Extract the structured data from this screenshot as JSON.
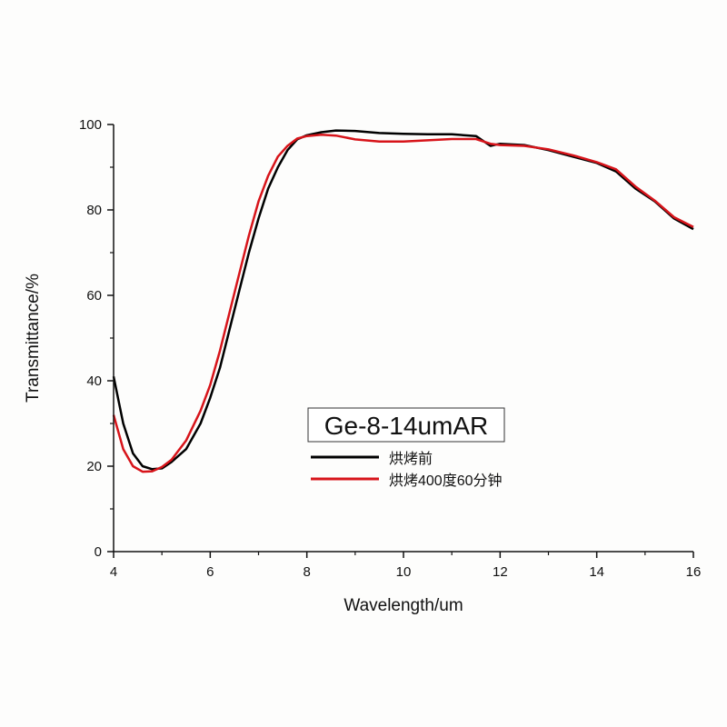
{
  "chart_data": {
    "type": "line",
    "title": "",
    "xlabel": "Wavelength/um",
    "ylabel": "Transmittance/%",
    "xlim": [
      4,
      16
    ],
    "ylim": [
      0,
      100
    ],
    "xticks": [
      4,
      6,
      8,
      10,
      12,
      14,
      16
    ],
    "yticks": [
      0,
      20,
      40,
      60,
      80,
      100
    ],
    "grid": false,
    "legend": {
      "title": "Ge-8-14umAR",
      "placement": "center"
    },
    "series": [
      {
        "name": "烘烤前",
        "color": "#000000",
        "x": [
          4,
          4.2,
          4.4,
          4.6,
          4.8,
          5.0,
          5.2,
          5.5,
          5.8,
          6.0,
          6.2,
          6.4,
          6.6,
          6.8,
          7.0,
          7.2,
          7.4,
          7.6,
          7.8,
          8.0,
          8.3,
          8.6,
          9.0,
          9.5,
          10,
          10.5,
          11,
          11.5,
          11.8,
          12,
          12.5,
          13,
          13.5,
          14,
          14.4,
          14.8,
          15.2,
          15.6,
          16
        ],
        "y": [
          41,
          30,
          23,
          20,
          19.3,
          19.5,
          21,
          24,
          30,
          36,
          43,
          52,
          61,
          70,
          78,
          85,
          90,
          94,
          96.5,
          97.5,
          98.2,
          98.6,
          98.5,
          98,
          97.8,
          97.7,
          97.7,
          97.3,
          95,
          95.5,
          95.2,
          94,
          92.5,
          91,
          89,
          85,
          82,
          78,
          75.5
        ]
      },
      {
        "name": "烘烤400度60分钟",
        "color": "#d7141a",
        "x": [
          4,
          4.2,
          4.4,
          4.6,
          4.8,
          5.0,
          5.2,
          5.5,
          5.8,
          6.0,
          6.2,
          6.4,
          6.6,
          6.8,
          7.0,
          7.2,
          7.4,
          7.6,
          7.8,
          8.0,
          8.3,
          8.6,
          9.0,
          9.5,
          10,
          10.5,
          11,
          11.5,
          11.8,
          12,
          12.5,
          13,
          13.5,
          14,
          14.4,
          14.8,
          15.2,
          15.6,
          16
        ],
        "y": [
          32,
          24,
          20,
          18.7,
          18.8,
          19.8,
          21.5,
          26,
          33,
          39,
          47,
          56,
          65,
          74,
          82,
          88,
          92.5,
          95,
          96.7,
          97.3,
          97.6,
          97.4,
          96.5,
          96,
          96,
          96.3,
          96.6,
          96.6,
          95.5,
          95.2,
          95,
          94.2,
          92.8,
          91.2,
          89.5,
          85.5,
          82.2,
          78.3,
          76
        ]
      }
    ]
  }
}
